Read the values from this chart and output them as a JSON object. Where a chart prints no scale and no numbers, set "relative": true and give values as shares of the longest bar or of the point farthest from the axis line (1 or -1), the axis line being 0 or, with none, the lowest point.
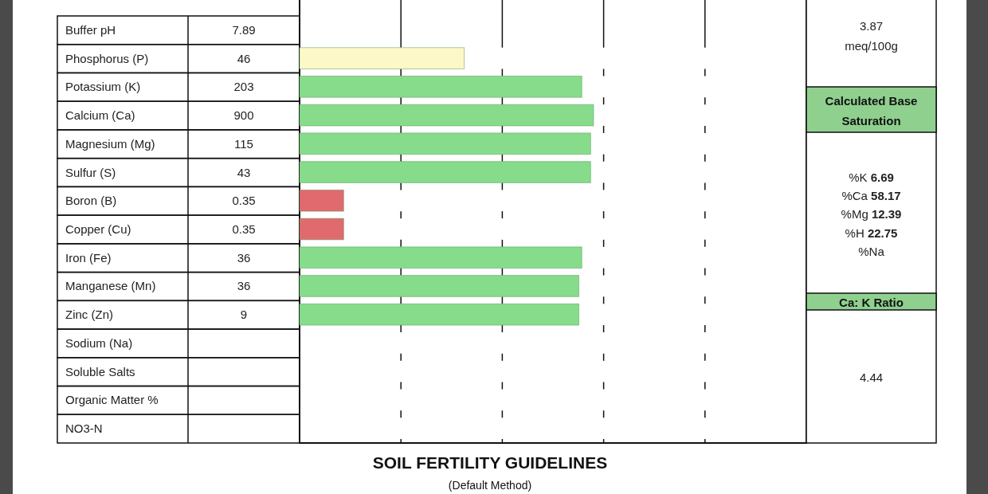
{
  "chart_data": [
    {
      "type": "bar",
      "orientation": "horizontal",
      "relative": true,
      "title": "SOIL FERTILITY GUIDELINES",
      "subtitle": "(Default Method)",
      "categories": [
        "Buffer pH",
        "Phosphorus (P)",
        "Potassium (K)",
        "Calcium (Ca)",
        "Magnesium (Mg)",
        "Sulfur (S)",
        "Boron (B)",
        "Copper (Cu)",
        "Iron (Fe)",
        "Manganese (Mn)",
        "Zinc (Zn)",
        "Sodium (Na)",
        "Soluble  Salts",
        "Organic Matter %",
        "NO3-N"
      ],
      "values": [
        null,
        0.56,
        0.96,
        1,
        0.99,
        0.99,
        0.15,
        0.15,
        0.96,
        0.95,
        0.95,
        null,
        null,
        null,
        null
      ],
      "colors": [
        null,
        "#fdf8c8",
        "#86dc8a",
        "#86dc8a",
        "#86dc8a",
        "#86dc8a",
        "#e06a6e",
        "#e06a6e",
        "#86dc8a",
        "#86dc8a",
        "#86dc8a",
        null,
        null,
        null,
        null
      ],
      "annotations": [
        "7.89",
        "46",
        "203",
        "900",
        "115",
        "43",
        "0.35",
        "0.35",
        "36",
        "36",
        "9"
      ]
    },
    {
      "type": "other",
      "annotations": [
        "3.87",
        "meq/100g",
        "Calculated Base Saturation",
        "%K 6.69",
        "%Ca 58.17",
        "%Mg 12.39",
        "%H 22.75",
        "%Na",
        "Ca: K Ratio",
        "4.44"
      ]
    }
  ]
}
